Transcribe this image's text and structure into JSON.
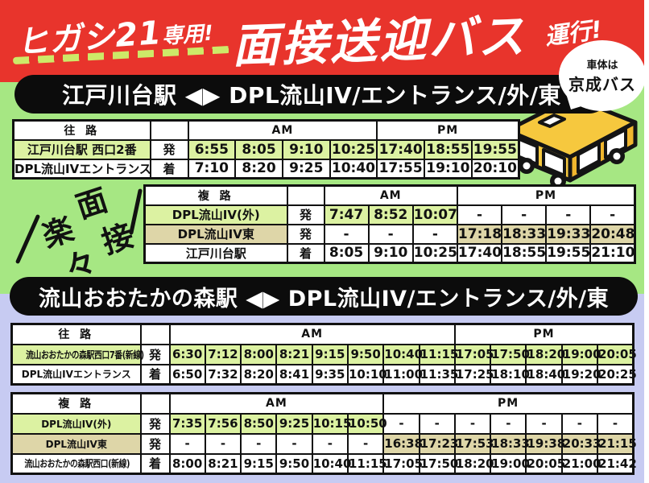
{
  "header": {
    "prefix_big": "ヒガシ21",
    "prefix_small": "専用!",
    "title": "面接送迎バス",
    "suffix": "運行!"
  },
  "bubble": {
    "line1": "車体は",
    "line2": "京成バス"
  },
  "decoration": {
    "chars": [
      "楽",
      "々",
      "面",
      "接"
    ]
  },
  "section1": {
    "banner": "江戸川台駅 ◀▶ DPL流山IV/エントランス/外/東"
  },
  "section2": {
    "banner": "流山おおたかの森駅 ◀▶ DPL流山IV/エントランス/外/東"
  },
  "colors": {
    "header_red": "#e8342c",
    "dash_green": "#cde968",
    "section_green": "#a6e783",
    "section_lavender": "#c7cbf2",
    "cell_green": "#dcf2a2",
    "cell_tan": "#ded6a8",
    "banner_black": "#0c0c0c",
    "bus_yellow": "#f5c63d"
  },
  "tables": [
    {
      "direction": "往 路",
      "am_label": "AM",
      "pm_label": "PM",
      "am_cols": 4,
      "pm_cols": 3,
      "rows": [
        {
          "station": "江戸川台駅 西口2番",
          "mark": "発",
          "highlight": "green",
          "times": [
            "6:55",
            "8:05",
            "9:10",
            "10:25",
            "17:40",
            "18:55",
            "19:55"
          ]
        },
        {
          "station": "DPL流山IVエントランス",
          "mark": "着",
          "highlight": "none",
          "times": [
            "7:10",
            "8:20",
            "9:25",
            "10:40",
            "17:55",
            "19:10",
            "20:10"
          ]
        }
      ]
    },
    {
      "direction": "複 路",
      "am_label": "AM",
      "pm_label": "PM",
      "am_cols": 3,
      "pm_cols": 4,
      "rows": [
        {
          "station": "DPL流山IV(外)",
          "mark": "発",
          "highlight": "green",
          "times": [
            "7:47",
            "8:52",
            "10:07",
            "-",
            "-",
            "-",
            "-"
          ]
        },
        {
          "station": "DPL流山IV東",
          "mark": "発",
          "highlight": "tan",
          "times": [
            "-",
            "-",
            "-",
            "17:18",
            "18:33",
            "19:33",
            "20:48"
          ]
        },
        {
          "station": "江戸川台駅",
          "mark": "着",
          "highlight": "none",
          "times": [
            "8:05",
            "9:10",
            "10:25",
            "17:40",
            "18:55",
            "19:55",
            "21:10"
          ]
        }
      ]
    },
    {
      "direction": "往 路",
      "am_label": "AM",
      "pm_label": "PM",
      "am_cols": 8,
      "pm_cols": 5,
      "rows": [
        {
          "station": "流山おおたかの森駅西口7番(新線)",
          "mark": "発",
          "highlight": "green",
          "times": [
            "6:30",
            "7:12",
            "8:00",
            "8:21",
            "9:15",
            "9:50",
            "10:40",
            "11:15",
            "17:05",
            "17:50",
            "18:20",
            "19:00",
            "20:05"
          ]
        },
        {
          "station": "DPL流山IVエントランス",
          "mark": "着",
          "highlight": "none",
          "times": [
            "6:50",
            "7:32",
            "8:20",
            "8:41",
            "9:35",
            "10:10",
            "11:00",
            "11:35",
            "17:25",
            "18:10",
            "18:40",
            "19:20",
            "20:25"
          ]
        }
      ]
    },
    {
      "direction": "複 路",
      "am_label": "AM",
      "pm_label": "PM",
      "am_cols": 6,
      "pm_cols": 7,
      "rows": [
        {
          "station": "DPL流山IV(外)",
          "mark": "発",
          "highlight": "green",
          "times": [
            "7:35",
            "7:56",
            "8:50",
            "9:25",
            "10:15",
            "10:50",
            "-",
            "-",
            "-",
            "-",
            "-",
            "-",
            "-"
          ]
        },
        {
          "station": "DPL流山IV東",
          "mark": "発",
          "highlight": "tan",
          "times": [
            "-",
            "-",
            "-",
            "-",
            "-",
            "-",
            "16:38",
            "17:23",
            "17:53",
            "18:33",
            "19:38",
            "20:33",
            "21:15"
          ]
        },
        {
          "station": "流山おおたかの森駅西口(新線)",
          "mark": "着",
          "highlight": "none",
          "times": [
            "8:00",
            "8:21",
            "9:15",
            "9:50",
            "10:40",
            "11:15",
            "17:05",
            "17:50",
            "18:20",
            "19:00",
            "20:05",
            "21:00",
            "21:42"
          ]
        }
      ]
    }
  ]
}
